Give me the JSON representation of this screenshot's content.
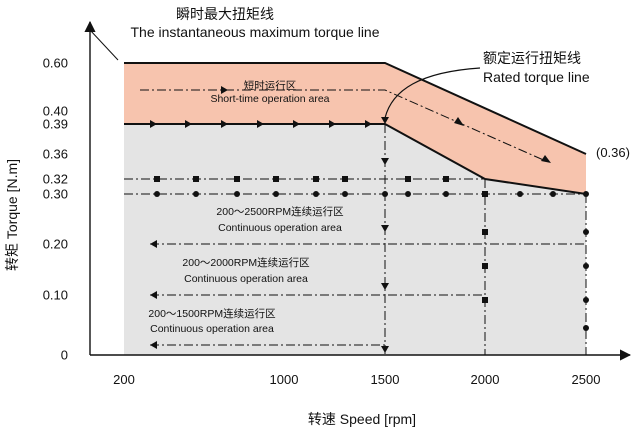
{
  "chart_data": {
    "type": "area",
    "title_cn": "瞬时最大扭矩线",
    "title_en": "The instantaneous maximum torque line",
    "rated_label_cn": "额定运行扭矩线",
    "rated_label_en": "Rated torque line",
    "short_time_cn": "短时运行区",
    "short_time_en": "Short-time operation area",
    "zone_labels": [
      {
        "cn": "200～2500RPM连续运行区",
        "en": "Continuous operation area"
      },
      {
        "cn": "200～2000RPM连续运行区",
        "en": "Continuous operation area"
      },
      {
        "cn": "200～1500RPM连续运行区",
        "en": "Continuous operation area"
      }
    ],
    "end_value_label": "(0.36)",
    "xlabel": "转速 Speed [rpm]",
    "ylabel": "转矩 Torque [N.m]",
    "x_ticks": [
      "200",
      "1000",
      "1500",
      "2000",
      "2500"
    ],
    "y_ticks": [
      "0.60",
      "0.40",
      "0.39",
      "0.36",
      "0.32",
      "0.30",
      "0.20",
      "0.10",
      "0"
    ],
    "y_origin_label": "0",
    "instantaneous_max_torque": {
      "x": [
        200,
        1500,
        2500
      ],
      "y": [
        0.6,
        0.6,
        0.36
      ]
    },
    "rated_torque": {
      "x": [
        200,
        1500,
        2000,
        2500
      ],
      "y": [
        0.39,
        0.39,
        0.32,
        0.3
      ]
    },
    "continuous_limits": [
      {
        "speed": 1500,
        "torque": 0.32
      },
      {
        "speed": 2000,
        "torque": 0.32
      },
      {
        "speed": 2500,
        "torque": 0.3
      }
    ],
    "colors": {
      "short_time_fill": "#f7c4ae",
      "continuous_fill": "#e4e4e4",
      "line": "#111111"
    }
  }
}
